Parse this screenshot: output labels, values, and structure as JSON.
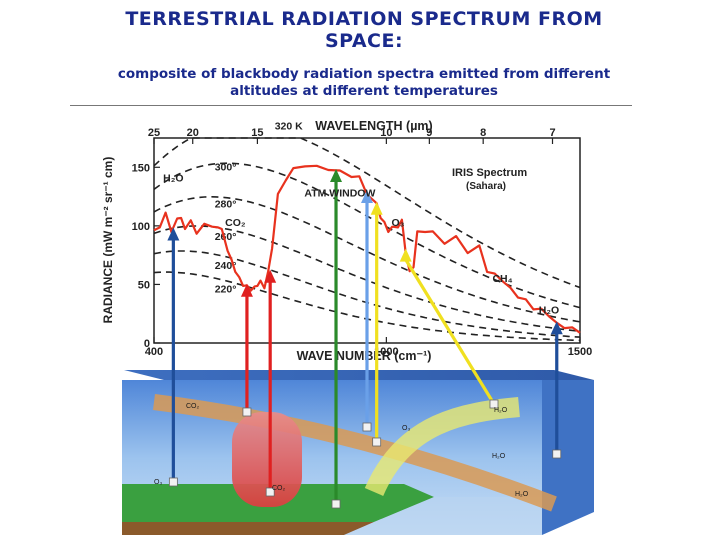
{
  "page": {
    "title_line1": "TERRESTRIAL RADIATION SPECTRUM FROM",
    "title_line2": "SPACE:",
    "subtitle_line1": "composite of blackbody radiation spectra emitted from different",
    "subtitle_line2": "altitudes at different temperatures"
  },
  "chart_data": {
    "type": "line",
    "title": "",
    "top_axis_label": "WAVELENGTH (µm)",
    "xlabel": "WAVE NUMBER (cm⁻¹)",
    "ylabel": "RADIANCE (mW m⁻² sr⁻¹ cm)",
    "inset_title": "IRIS Spectrum",
    "inset_subtitle": "(Sahara)",
    "xlim": [
      400,
      1500
    ],
    "ylim": [
      0,
      175
    ],
    "x_ticks": [
      400,
      1000,
      1500
    ],
    "y_ticks": [
      0,
      50,
      100,
      150
    ],
    "wavelength_ticks": [
      {
        "label": "25",
        "wn": 400
      },
      {
        "label": "20",
        "wn": 500
      },
      {
        "label": "15",
        "wn": 667
      },
      {
        "label": "10",
        "wn": 1000
      },
      {
        "label": "9",
        "wn": 1111
      },
      {
        "label": "8",
        "wn": 1250
      },
      {
        "label": "7",
        "wn": 1429
      }
    ],
    "blackbody_labels": [
      "320 K",
      "300°",
      "280°",
      "260°",
      "240°",
      "220°"
    ],
    "blackbody_temperatures_K": [
      320,
      300,
      280,
      260,
      240,
      220
    ],
    "absorber_labels": [
      {
        "label": "H₂O",
        "wn": 450,
        "y": 138
      },
      {
        "label": "CO₂",
        "wn": 610,
        "y": 100
      },
      {
        "label": "ATM WINDOW",
        "wn": 880,
        "y": 125
      },
      {
        "label": "O₃",
        "wn": 1030,
        "y": 100
      },
      {
        "label": "CH₄",
        "wn": 1300,
        "y": 52
      },
      {
        "label": "H₂O",
        "wn": 1420,
        "y": 25
      }
    ],
    "series": [
      {
        "name": "IRIS Spectrum",
        "x": [
          400,
          415,
          430,
          445,
          460,
          470,
          480,
          495,
          510,
          530,
          550,
          565,
          575,
          590,
          600,
          610,
          620,
          630,
          640,
          650,
          660,
          667,
          675,
          685,
          695,
          705,
          720,
          740,
          760,
          790,
          820,
          850,
          880,
          910,
          930,
          950,
          975,
          985,
          995,
          1005,
          1015,
          1030,
          1040,
          1050,
          1060,
          1070,
          1080,
          1100,
          1120,
          1150,
          1180,
          1210,
          1240,
          1260,
          1280,
          1300,
          1320,
          1340,
          1360,
          1380,
          1400,
          1420,
          1440,
          1460,
          1480,
          1500
        ],
        "y": [
          95,
          100,
          110,
          96,
          105,
          108,
          96,
          106,
          92,
          103,
          98,
          100,
          96,
          80,
          70,
          62,
          55,
          50,
          48,
          46,
          47,
          50,
          52,
          48,
          60,
          82,
          126,
          140,
          148,
          152,
          150,
          149,
          146,
          143,
          141,
          128,
          118,
          108,
          102,
          96,
          98,
          100,
          104,
          78,
          60,
          66,
          94,
          96,
          94,
          86,
          90,
          78,
          82,
          62,
          58,
          54,
          46,
          40,
          36,
          30,
          28,
          24,
          16,
          14,
          12,
          10
        ]
      }
    ],
    "arrows_from_atmosphere": [
      {
        "color": "#1f4e9a",
        "wn": 450,
        "label": "H₂O"
      },
      {
        "color": "#e02020",
        "wn": 640,
        "label": "CO₂"
      },
      {
        "color": "#e02020",
        "wn": 700,
        "label": ""
      },
      {
        "color": "#2a8a2a",
        "wn": 870,
        "label": ""
      },
      {
        "color": "#6aa0e8",
        "wn": 950,
        "label": ""
      },
      {
        "color": "#f0e020",
        "wn": 975,
        "label": "O₃"
      },
      {
        "color": "#f0e020",
        "wn": 1050,
        "label": "O₃"
      },
      {
        "color": "#1f4e9a",
        "wn": 1440,
        "label": "H₂O"
      }
    ],
    "atmosphere_labels": [
      "CO₂",
      "O₃",
      "H₂O",
      "O₃",
      "H₂O",
      "CO₂",
      "H₂O"
    ],
    "grid": false,
    "legend": "none"
  }
}
